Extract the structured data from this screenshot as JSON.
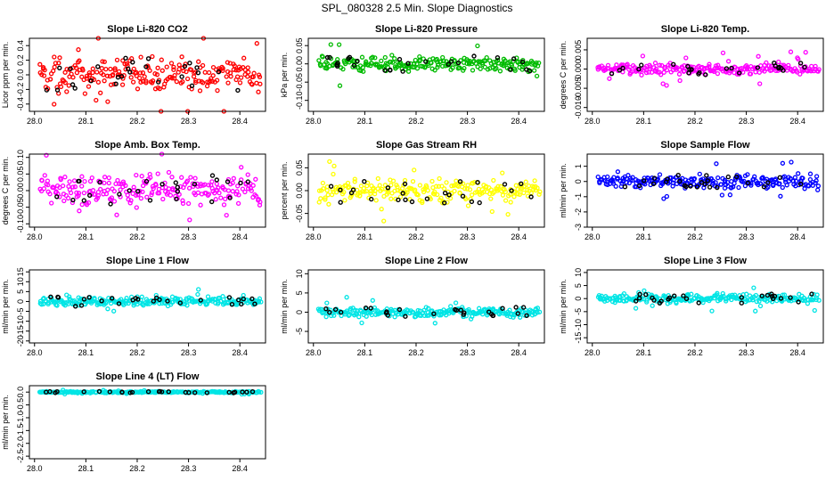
{
  "page_title": "SPL_080328  2.5 Min. Slope Diagnostics",
  "x_ticks": [
    "28.0",
    "28.1",
    "28.2",
    "28.3",
    "28.4"
  ],
  "chart_data": [
    {
      "type": "scatter",
      "title": "Slope Li-820 CO2",
      "ylabel": "Licor ppm per min.",
      "color": "#ff0000",
      "xlim": [
        27.99,
        28.45
      ],
      "ylim": [
        -0.5,
        0.5
      ],
      "yticks": [
        "-0.4",
        "-0.2",
        "0.0",
        "0.2",
        "0.4"
      ],
      "ytick_values": [
        -0.4,
        -0.2,
        0.0,
        0.2,
        0.4
      ],
      "center": 0.0,
      "spread": 0.22,
      "n": 230
    },
    {
      "type": "scatter",
      "title": "Slope Li-820 Pressure",
      "ylabel": "kPa per min.",
      "color": "#00bb00",
      "xlim": [
        27.99,
        28.45
      ],
      "ylim": [
        -0.13,
        0.07
      ],
      "yticks": [
        "-0.10",
        "-0.05",
        "0.00",
        "0.05"
      ],
      "ytick_values": [
        -0.1,
        -0.05,
        0.0,
        0.05
      ],
      "center": 0.0,
      "spread": 0.02,
      "n": 230
    },
    {
      "type": "scatter",
      "title": "Slope Li-820 Temp.",
      "ylabel": "degrees C per min.",
      "color": "#ff00ff",
      "xlim": [
        27.99,
        28.45
      ],
      "ylim": [
        -0.011,
        0.008
      ],
      "yticks": [
        "-0.010",
        "-0.005",
        "0.000",
        "0.005"
      ],
      "ytick_values": [
        -0.01,
        -0.005,
        0.0,
        0.005
      ],
      "center": 0.0,
      "spread": 0.0015,
      "n": 230
    },
    {
      "type": "scatter",
      "title": "Slope Amb. Box Temp.",
      "ylabel": "degrees C per min.",
      "color": "#ff00ff",
      "xlim": [
        27.99,
        28.45
      ],
      "ylim": [
        -0.11,
        0.11
      ],
      "yticks": [
        "-0.10",
        "-0.05",
        "0.00",
        "0.05",
        "0.10"
      ],
      "ytick_values": [
        -0.1,
        -0.05,
        0.0,
        0.05,
        0.1
      ],
      "center": 0.0,
      "spread": 0.045,
      "n": 230
    },
    {
      "type": "scatter",
      "title": "Slope Gas Stream RH",
      "ylabel": "percent per min.",
      "color": "#ffff00",
      "xlim": [
        27.99,
        28.45
      ],
      "ylim": [
        -0.08,
        0.08
      ],
      "yticks": [
        "-0.05",
        "0.00",
        "0.05"
      ],
      "ytick_values": [
        -0.05,
        0.0,
        0.05
      ],
      "center": 0.0,
      "spread": 0.025,
      "n": 230
    },
    {
      "type": "scatter",
      "title": "Slope Sample Flow",
      "ylabel": "ml/min per min.",
      "color": "#0000ff",
      "xlim": [
        27.99,
        28.45
      ],
      "ylim": [
        -3,
        1.8
      ],
      "yticks": [
        "-3",
        "-2",
        "-1",
        "0",
        "1"
      ],
      "ytick_values": [
        -3,
        -2,
        -1,
        0,
        1
      ],
      "center": 0.0,
      "spread": 0.45,
      "n": 230
    },
    {
      "type": "scatter",
      "title": "Slope Line 1 Flow",
      "ylabel": "ml/min per min.",
      "color": "#00e5e5",
      "xlim": [
        27.99,
        28.45
      ],
      "ylim": [
        -21,
        16
      ],
      "yticks": [
        "-20",
        "-15",
        "-10",
        "-5",
        "0",
        "5",
        "10",
        "15"
      ],
      "ytick_values": [
        -20,
        -15,
        -10,
        -5,
        0,
        5,
        10,
        15
      ],
      "center": 0.0,
      "spread": 2.2,
      "n": 250
    },
    {
      "type": "scatter",
      "title": "Slope Line 2 Flow",
      "ylabel": "ml/min per min.",
      "color": "#00e5e5",
      "xlim": [
        27.99,
        28.45
      ],
      "ylim": [
        -8,
        11
      ],
      "yticks": [
        "-5",
        "0",
        "5",
        "10"
      ],
      "ytick_values": [
        -5,
        0,
        5,
        10
      ],
      "center": 0.0,
      "spread": 1.3,
      "n": 250
    },
    {
      "type": "scatter",
      "title": "Slope Line 3 Flow",
      "ylabel": "ml/min per min.",
      "color": "#00e5e5",
      "xlim": [
        27.99,
        28.45
      ],
      "ylim": [
        -17,
        11
      ],
      "yticks": [
        "-15",
        "-10",
        "-5",
        "0",
        "5",
        "10"
      ],
      "ytick_values": [
        -15,
        -10,
        -5,
        0,
        5,
        10
      ],
      "center": 0.0,
      "spread": 1.6,
      "n": 250
    },
    {
      "type": "scatter",
      "title": "Slope Line 4 (LT) Flow",
      "ylabel": "ml/min per min.",
      "color": "#00e5e5",
      "xlim": [
        27.99,
        28.45
      ],
      "ylim": [
        -2.6,
        0.25
      ],
      "yticks": [
        "-2.5",
        "-2.0",
        "-1.5",
        "-1.0",
        "-0.5",
        "0.0"
      ],
      "ytick_values": [
        -2.5,
        -2.0,
        -1.5,
        -1.0,
        -0.5,
        0.0
      ],
      "center": 0.0,
      "spread": 0.03,
      "n": 250
    }
  ]
}
